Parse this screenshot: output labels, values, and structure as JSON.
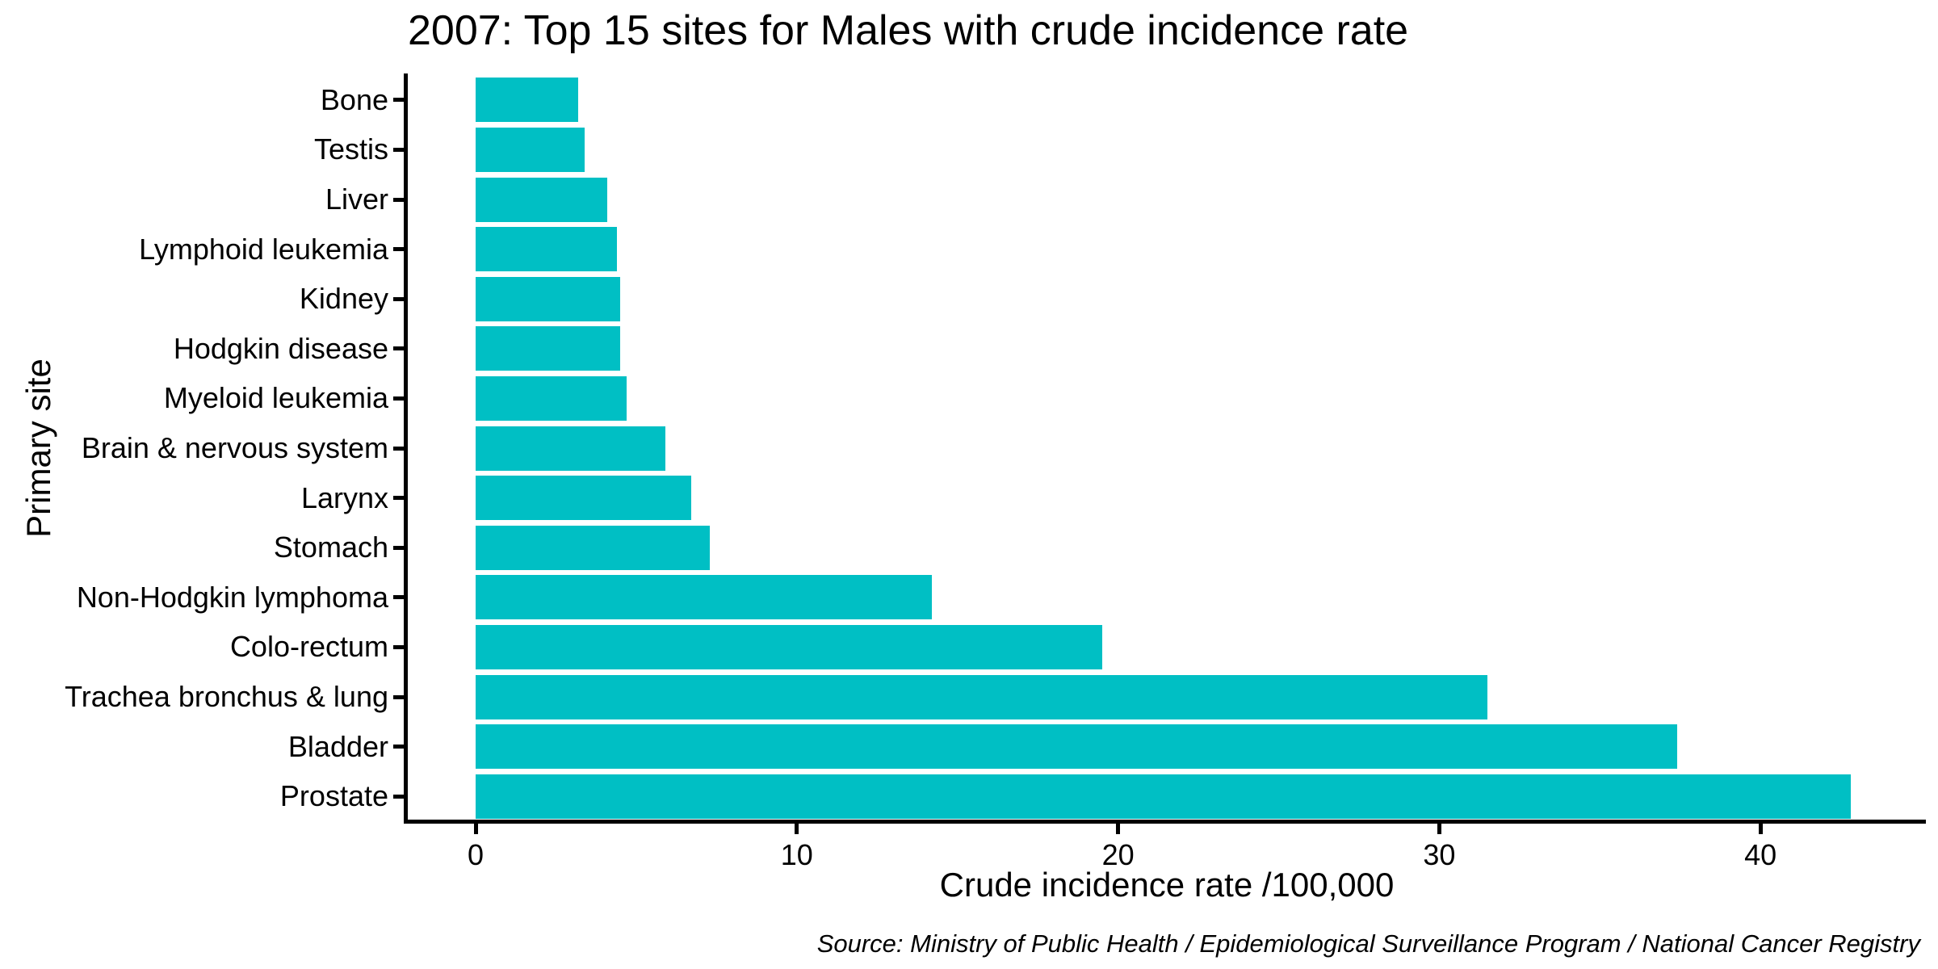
{
  "title": "2007: Top 15 sites for Males with crude incidence rate",
  "source_note": "Source: Ministry of Public Health / Epidemiological Surveillance Program / National Cancer Registry",
  "colors": {
    "bar": "#00BFC4",
    "axis": "#000000",
    "text": "#000000",
    "background": "#ffffff"
  },
  "chart_data": {
    "type": "bar",
    "orientation": "horizontal",
    "title": "2007: Top 15 sites for Males with crude incidence rate",
    "xlabel": "Crude incidence rate /100,000",
    "ylabel": "Primary site",
    "categories": [
      "Bone",
      "Testis",
      "Liver",
      "Lymphoid leukemia",
      "Kidney",
      "Hodgkin disease",
      "Myeloid leukemia",
      "Brain & nervous system",
      "Larynx",
      "Stomach",
      "Non-Hodgkin lymphoma",
      "Colo-rectum",
      "Trachea bronchus & lung",
      "Bladder",
      "Prostate"
    ],
    "values": [
      3.2,
      3.4,
      4.1,
      4.4,
      4.5,
      4.5,
      4.7,
      5.9,
      6.7,
      7.3,
      14.2,
      19.5,
      31.5,
      37.4,
      42.8
    ],
    "x_ticks": [
      0,
      10,
      20,
      30,
      40
    ],
    "xlim": [
      0,
      45
    ],
    "grid": false,
    "legend": false,
    "sort_order": "ascending-top-to-bottom"
  }
}
